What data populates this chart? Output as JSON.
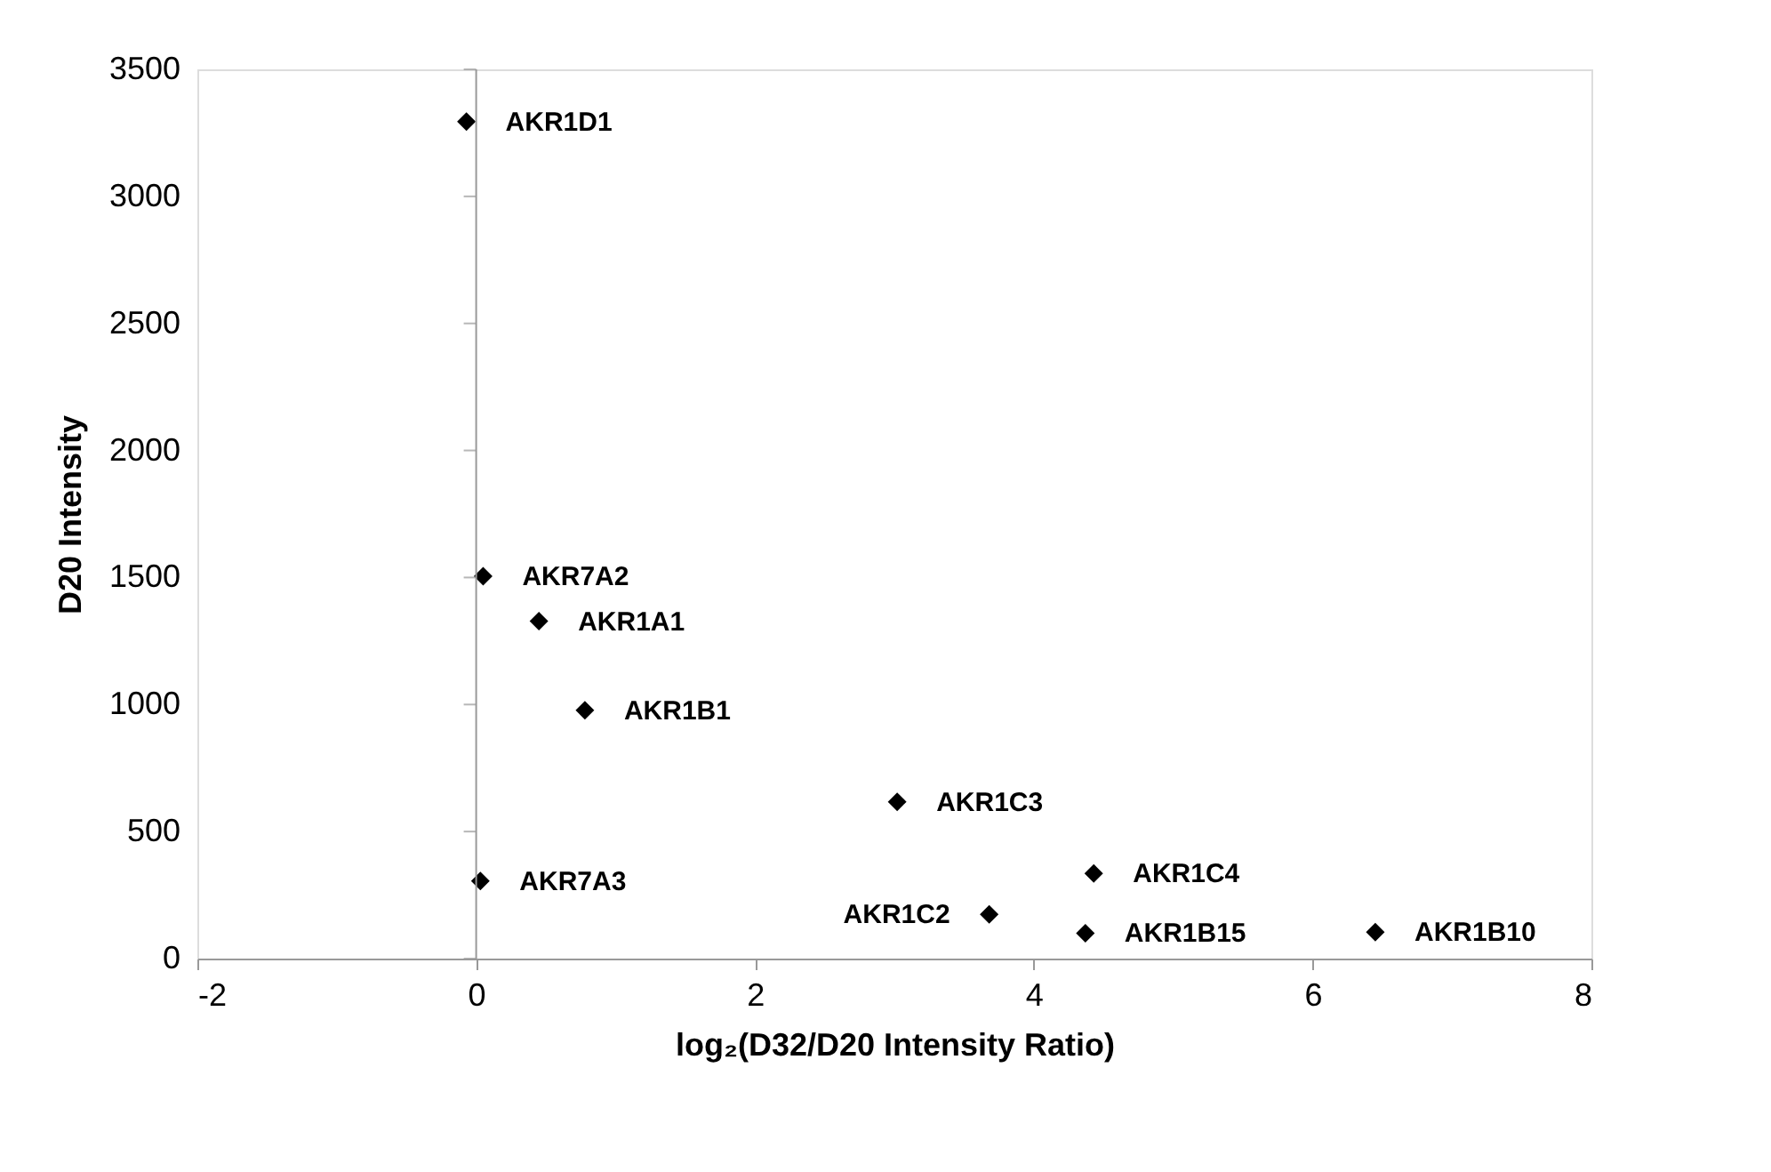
{
  "chart_data": {
    "type": "scatter",
    "xlabel": "log₂(D32/D20 Intensity Ratio)",
    "ylabel": "D20 Intensity",
    "x": [
      -0.07,
      0.05,
      0.45,
      0.78,
      3.02,
      0.03,
      4.43,
      3.68,
      4.37,
      6.45
    ],
    "values": [
      3294,
      1505,
      1328,
      977,
      617,
      305,
      335,
      174,
      100,
      104
    ],
    "color": "#000000",
    "marker": "diamond",
    "xlim": [
      -2,
      8
    ],
    "xticks": [
      -2,
      0,
      2,
      4,
      6,
      8
    ],
    "ylim": [
      0,
      3500
    ],
    "yticks": [
      0,
      500,
      1000,
      1500,
      2000,
      2500,
      3000,
      3500
    ],
    "annotations": [
      {
        "text": "AKR1D1",
        "x": -0.07,
        "y": 3294
      },
      {
        "text": "AKR7A2",
        "x": 0.05,
        "y": 1505
      },
      {
        "text": "AKR1A1",
        "x": 0.45,
        "y": 1328
      },
      {
        "text": "AKR1B1",
        "x": 0.78,
        "y": 977
      },
      {
        "text": "AKR1C3",
        "x": 3.02,
        "y": 617
      },
      {
        "text": "AKR7A3",
        "x": 0.03,
        "y": 305
      },
      {
        "text": "AKR1C4",
        "x": 4.43,
        "y": 335
      },
      {
        "text": "AKR1C2",
        "x": 3.68,
        "y": 174
      },
      {
        "text": "AKR1B15",
        "x": 4.37,
        "y": 100
      },
      {
        "text": "AKR1B10",
        "x": 6.45,
        "y": 104
      }
    ]
  }
}
